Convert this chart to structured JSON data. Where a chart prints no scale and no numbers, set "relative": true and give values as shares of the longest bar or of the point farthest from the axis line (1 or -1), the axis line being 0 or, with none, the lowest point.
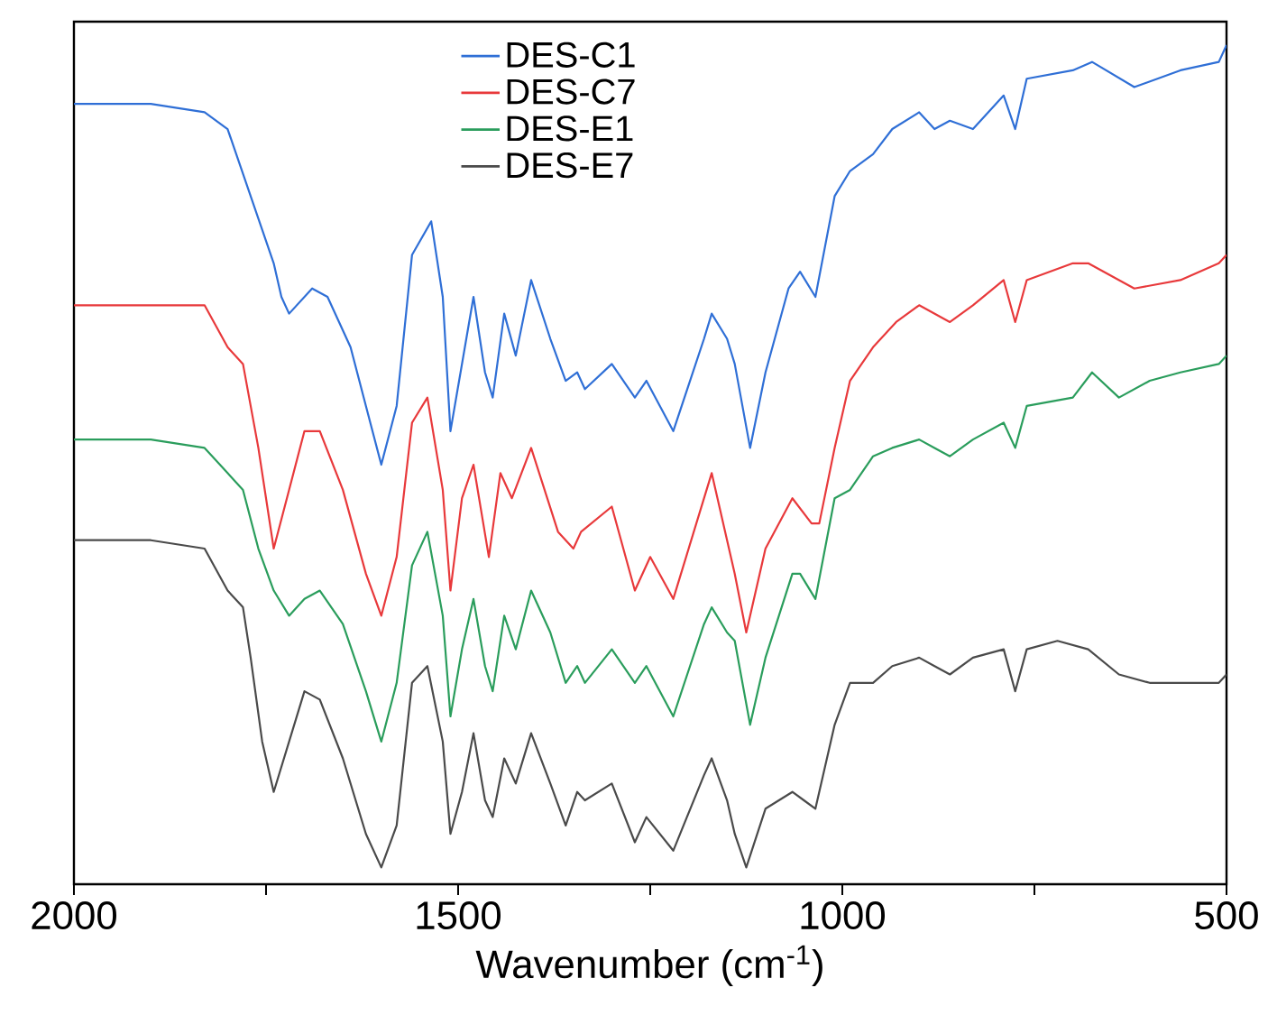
{
  "chart_data": {
    "type": "line",
    "relative": true,
    "xlabel": "Wavenumber (cm$^{-1}$)",
    "x": [
      2000,
      1900,
      1830,
      1800,
      1780,
      1770,
      1760,
      1755,
      1740,
      1730,
      1720,
      1700,
      1690,
      1680,
      1670,
      1650,
      1640,
      1620,
      1600,
      1580,
      1560,
      1540,
      1535,
      1520,
      1510,
      1495,
      1480,
      1465,
      1460,
      1455,
      1445,
      1440,
      1430,
      1425,
      1405,
      1380,
      1370,
      1360,
      1350,
      1345,
      1340,
      1335,
      1300,
      1270,
      1255,
      1250,
      1220,
      1180,
      1170,
      1150,
      1140,
      1125,
      1120,
      1100,
      1070,
      1065,
      1055,
      1050,
      1040,
      1035,
      1030,
      1010,
      990,
      960,
      935,
      930,
      900,
      880,
      860,
      830,
      790,
      775,
      760,
      720,
      700,
      680,
      675,
      640,
      620,
      600,
      560,
      510,
      500
    ],
    "xlim": [
      2000,
      500
    ],
    "xticks": [
      2000,
      {
        "value": 1750,
        "label": null
      },
      1500,
      {
        "value": 1250,
        "label": null
      },
      1000,
      {
        "value": 750,
        "label": null
      },
      500
    ],
    "tick_labels": "x",
    "grid": false,
    "legend": "top",
    "line_style": "solid",
    "marker": "none",
    "series": [
      {
        "name": "DES-C1",
        "color": "#2f6fd6",
        "values": [
          0.93,
          0.93,
          0.92,
          0.9,
          null,
          0.82,
          null,
          null,
          0.74,
          0.7,
          0.68,
          null,
          0.71,
          null,
          0.7,
          null,
          0.64,
          0.57,
          0.5,
          0.57,
          0.75,
          null,
          0.79,
          0.7,
          0.54,
          0.62,
          0.7,
          0.61,
          null,
          0.58,
          null,
          0.68,
          null,
          0.63,
          0.72,
          0.65,
          null,
          0.6,
          null,
          0.61,
          null,
          0.59,
          0.62,
          0.58,
          0.6,
          null,
          0.54,
          0.65,
          0.68,
          0.65,
          0.62,
          null,
          0.52,
          0.61,
          0.71,
          null,
          0.73,
          null,
          null,
          0.7,
          null,
          0.82,
          0.85,
          0.87,
          0.9,
          null,
          0.92,
          0.9,
          0.91,
          0.9,
          0.94,
          0.9,
          0.96,
          null,
          0.97,
          null,
          0.98,
          null,
          0.95,
          null,
          0.97,
          0.98,
          1.0
        ]
      },
      {
        "name": "DES-C7",
        "color": "#e8393b",
        "values": [
          0.69,
          0.69,
          0.69,
          0.64,
          0.62,
          null,
          0.52,
          null,
          0.4,
          null,
          0.47,
          0.54,
          null,
          0.54,
          null,
          0.47,
          null,
          0.37,
          0.32,
          0.39,
          0.55,
          0.58,
          null,
          0.47,
          0.35,
          0.46,
          0.5,
          null,
          0.39,
          null,
          0.49,
          null,
          0.46,
          null,
          0.52,
          null,
          0.42,
          null,
          0.4,
          null,
          0.42,
          null,
          0.45,
          0.35,
          null,
          0.39,
          0.34,
          null,
          0.49,
          null,
          0.37,
          0.3,
          null,
          0.4,
          null,
          0.46,
          null,
          null,
          0.43,
          null,
          0.43,
          0.52,
          0.6,
          0.64,
          null,
          0.67,
          0.69,
          null,
          0.67,
          0.69,
          0.72,
          0.67,
          0.72,
          null,
          0.74,
          0.74,
          null,
          null,
          0.71,
          null,
          0.72,
          0.74,
          0.75
        ]
      },
      {
        "name": "DES-E1",
        "color": "#2a9d5c",
        "values": [
          0.53,
          0.53,
          0.52,
          0.49,
          0.47,
          null,
          0.4,
          null,
          0.35,
          null,
          0.32,
          0.34,
          null,
          0.35,
          null,
          0.31,
          null,
          0.23,
          0.17,
          0.24,
          0.38,
          0.42,
          null,
          0.32,
          0.2,
          0.28,
          0.34,
          0.26,
          null,
          0.23,
          null,
          0.32,
          null,
          0.28,
          0.35,
          0.3,
          null,
          0.24,
          null,
          0.26,
          null,
          0.24,
          0.28,
          0.24,
          0.26,
          null,
          0.2,
          0.31,
          0.33,
          0.3,
          0.29,
          null,
          0.19,
          0.27,
          null,
          0.37,
          0.37,
          null,
          null,
          0.34,
          null,
          0.46,
          0.47,
          0.51,
          0.52,
          null,
          0.53,
          0.52,
          0.51,
          0.53,
          0.55,
          0.52,
          0.57,
          null,
          0.58,
          null,
          0.61,
          0.58,
          null,
          0.6,
          0.61,
          0.62,
          0.63
        ]
      },
      {
        "name": "DES-E7",
        "color": "#4a4a4a",
        "values": [
          0.41,
          0.41,
          0.4,
          0.35,
          0.33,
          0.27,
          null,
          0.17,
          0.11,
          null,
          0.17,
          0.23,
          null,
          0.22,
          null,
          0.15,
          null,
          0.06,
          0.02,
          0.07,
          0.24,
          0.26,
          null,
          0.17,
          0.06,
          0.11,
          0.18,
          0.1,
          null,
          0.08,
          null,
          0.15,
          null,
          0.12,
          0.18,
          0.12,
          null,
          0.07,
          null,
          0.11,
          null,
          0.1,
          0.12,
          0.05,
          0.08,
          null,
          0.04,
          0.13,
          0.15,
          0.1,
          0.06,
          0.02,
          null,
          0.09,
          null,
          0.11,
          null,
          0.1,
          null,
          0.09,
          null,
          0.19,
          0.24,
          0.24,
          0.26,
          null,
          0.27,
          0.26,
          0.25,
          0.27,
          0.28,
          0.23,
          0.28,
          0.29,
          null,
          0.28,
          null,
          0.25,
          null,
          0.24,
          0.24,
          0.24,
          0.25
        ]
      }
    ]
  }
}
